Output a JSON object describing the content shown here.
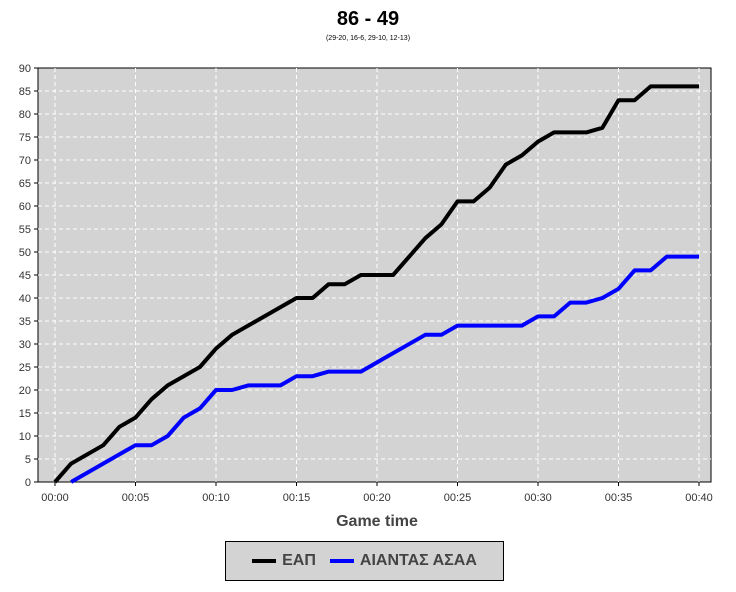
{
  "chart_data": {
    "type": "line",
    "title": "86 - 49",
    "subtitle": "(29-20, 16-6, 29-10, 12-13)",
    "xlabel": "Game time",
    "ylabel": "",
    "xlim": [
      0,
      40
    ],
    "ylim": [
      0,
      90
    ],
    "x_ticks": [
      "00:00",
      "00:05",
      "00:10",
      "00:15",
      "00:20",
      "00:25",
      "00:30",
      "00:35",
      "00:40"
    ],
    "y_ticks": [
      "0",
      "5",
      "10",
      "15",
      "20",
      "25",
      "30",
      "35",
      "40",
      "45",
      "50",
      "55",
      "60",
      "65",
      "70",
      "75",
      "80",
      "85",
      "90"
    ],
    "grid": true,
    "legend_position": "bottom",
    "series": [
      {
        "name": "ΕΑΠ",
        "color": "#000000",
        "points": [
          [
            0,
            0
          ],
          [
            1,
            4
          ],
          [
            3,
            8
          ],
          [
            4,
            12
          ],
          [
            5,
            14
          ],
          [
            6,
            18
          ],
          [
            7,
            21
          ],
          [
            9,
            25
          ],
          [
            10,
            29
          ],
          [
            11,
            32
          ],
          [
            15,
            40
          ],
          [
            16,
            40
          ],
          [
            17,
            43
          ],
          [
            18,
            43
          ],
          [
            19,
            45
          ],
          [
            21,
            45
          ],
          [
            23,
            53
          ],
          [
            24,
            56
          ],
          [
            25,
            61
          ],
          [
            26,
            61
          ],
          [
            27,
            64
          ],
          [
            28,
            69
          ],
          [
            29,
            71
          ],
          [
            30,
            74
          ],
          [
            31,
            76
          ],
          [
            33,
            76
          ],
          [
            34,
            77
          ],
          [
            35,
            83
          ],
          [
            36,
            83
          ],
          [
            37,
            86
          ],
          [
            40,
            86
          ]
        ]
      },
      {
        "name": "ΑΙΑΝΤΑΣ ΑΣΑΑ",
        "color": "#0000ff",
        "points": [
          [
            1,
            0
          ],
          [
            5,
            8
          ],
          [
            6,
            8
          ],
          [
            7,
            10
          ],
          [
            8,
            14
          ],
          [
            9,
            16
          ],
          [
            10,
            20
          ],
          [
            11,
            20
          ],
          [
            12,
            21
          ],
          [
            14,
            21
          ],
          [
            15,
            23
          ],
          [
            16,
            23
          ],
          [
            17,
            24
          ],
          [
            19,
            24
          ],
          [
            23,
            32
          ],
          [
            24,
            32
          ],
          [
            25,
            34
          ],
          [
            29,
            34
          ],
          [
            30,
            36
          ],
          [
            31,
            36
          ],
          [
            32,
            39
          ],
          [
            33,
            39
          ],
          [
            34,
            40
          ],
          [
            35,
            42
          ],
          [
            36,
            46
          ],
          [
            37,
            46
          ],
          [
            38,
            49
          ],
          [
            40,
            49
          ]
        ]
      }
    ]
  }
}
